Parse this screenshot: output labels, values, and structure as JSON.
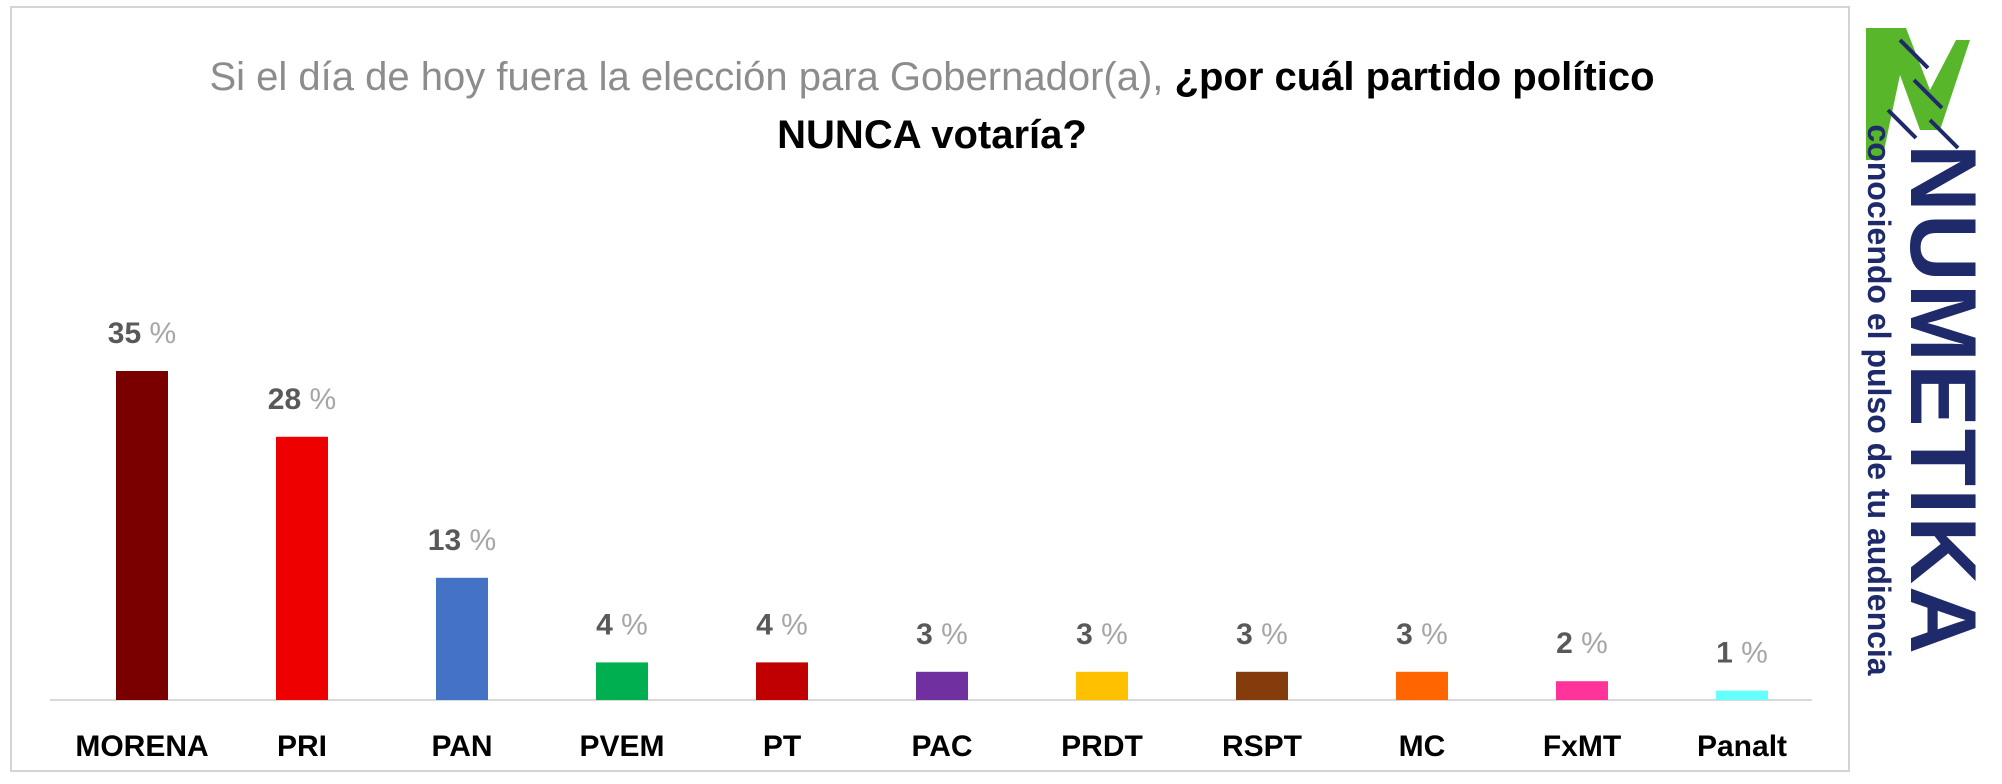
{
  "title": {
    "normal": "Si el día de hoy fuera la elección para Gobernador(a), ",
    "bold_line1": "¿por cuál partido político",
    "bold_line2": "NUNCA votaría?"
  },
  "brand": {
    "name": "NUMETIKA",
    "tagline": "conociendo el pulso de tu audiencia",
    "logo_colors": [
      "#58b62b",
      "#1f2a6b"
    ]
  },
  "chart_data": {
    "type": "bar",
    "title": "Si el día de hoy fuera la elección para Gobernador(a), ¿por cuál partido político NUNCA votaría?",
    "categories": [
      "MORENA",
      "PRI",
      "PAN",
      "PVEM",
      "PT",
      "PAC",
      "PRDT",
      "RSPT",
      "MC",
      "FxMT",
      "Panalt"
    ],
    "values": [
      35,
      28,
      13,
      4,
      4,
      3,
      3,
      3,
      3,
      2,
      1
    ],
    "colors": [
      "#7a0000",
      "#ee0000",
      "#4472c4",
      "#00b050",
      "#c00000",
      "#7030a0",
      "#ffc000",
      "#843c0c",
      "#ff6600",
      "#ff3399",
      "#66ffff"
    ],
    "unit": "%",
    "xlabel": "",
    "ylabel": "",
    "grid": false,
    "legend": "none"
  }
}
